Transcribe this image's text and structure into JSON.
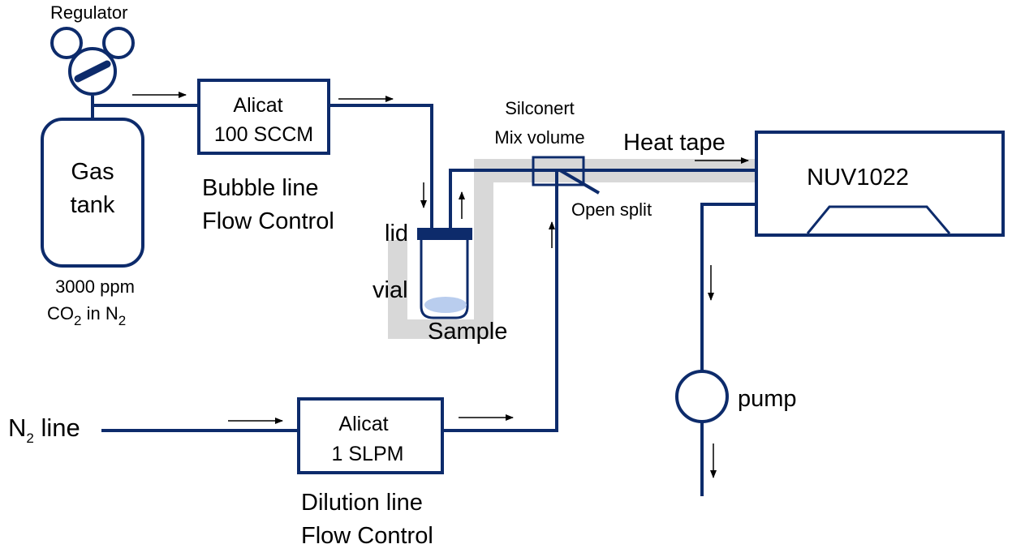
{
  "colors": {
    "line": "#0d2b6b",
    "heat_tape": "#d8d8d8",
    "sample": "#b9cdee",
    "arrow": "#000000"
  },
  "icons": [
    "regulator-gauge-icon",
    "pump-icon",
    "flow-arrow-icon",
    "detector-cell-icon"
  ],
  "regulator": {
    "label": "Regulator"
  },
  "gas_tank": {
    "label_line1": "Gas",
    "label_line2": "tank",
    "conc_line1": "3000 ppm",
    "conc_line2_pre": "CO",
    "conc_line2_sub1": "2",
    "conc_line2_mid": " in N",
    "conc_line2_sub2": "2"
  },
  "bubble_controller": {
    "name": "Alicat",
    "rating": "100 SCCM",
    "caption_line1": "Bubble line",
    "caption_line2": "Flow Control"
  },
  "vial": {
    "lid_label": "lid",
    "vial_label": "vial",
    "sample_label": "Sample"
  },
  "mix_volume": {
    "label_line1": "Silconert",
    "label_line2": "Mix volume",
    "open_split_label": "Open split"
  },
  "heat_tape": {
    "label": "Heat tape"
  },
  "instrument": {
    "label": "NUV1022"
  },
  "pump": {
    "label": "pump"
  },
  "n2_line": {
    "label_pre": "N",
    "label_sub": "2",
    "label_post": " line"
  },
  "dilution_controller": {
    "name": "Alicat",
    "rating": "1 SLPM",
    "caption_line1": "Dilution line",
    "caption_line2": "Flow Control"
  }
}
